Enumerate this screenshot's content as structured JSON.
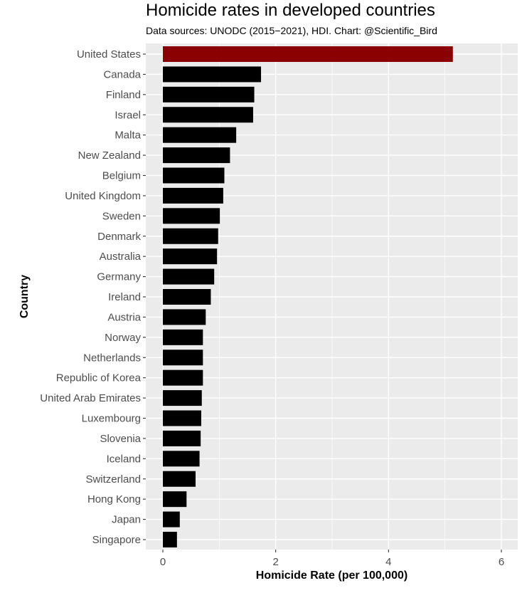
{
  "chart_data": {
    "type": "bar",
    "orientation": "horizontal",
    "title": "Homicide rates in developed countries",
    "subtitle": "Data sources: UNODC (2015−2021), HDI. Chart: @Scientific_Bird",
    "xlabel": "Homicide Rate (per 100,000)",
    "ylabel": "Country",
    "xlim": [
      -0.3,
      6.3
    ],
    "xticks": [
      "0",
      "2",
      "4",
      "6"
    ],
    "grid": true,
    "categories": [
      "United States",
      "Canada",
      "Finland",
      "Israel",
      "Malta",
      "New Zealand",
      "Belgium",
      "United Kingdom",
      "Sweden",
      "Denmark",
      "Australia",
      "Germany",
      "Ireland",
      "Austria",
      "Norway",
      "Netherlands",
      "Republic of Korea",
      "United Arab Emirates",
      "Luxembourg",
      "Slovenia",
      "Iceland",
      "Switzerland",
      "Hong Kong",
      "Japan",
      "Singapore"
    ],
    "values": [
      5.14,
      1.74,
      1.62,
      1.6,
      1.3,
      1.19,
      1.09,
      1.07,
      1.01,
      0.98,
      0.96,
      0.91,
      0.85,
      0.76,
      0.71,
      0.71,
      0.71,
      0.69,
      0.68,
      0.67,
      0.65,
      0.58,
      0.42,
      0.3,
      0.25
    ],
    "highlight": "United States",
    "colors": {
      "highlight": "#8b0000",
      "default": "#000000",
      "panel": "#ebebeb",
      "grid": "#ffffff"
    }
  }
}
